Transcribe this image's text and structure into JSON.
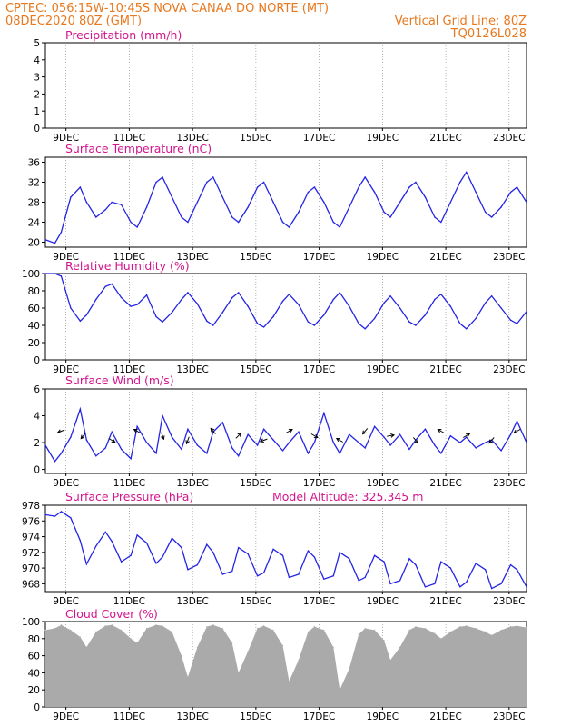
{
  "header": {
    "line1_left": "CPTEC:   056:15W-10:45S   NOVA CANAA DO NORTE (MT)",
    "line2_left": "08DEC2020 80Z (GMT)",
    "line2_right": "Vertical Grid Line: 80Z",
    "line3_right": "TQ0126L028",
    "model_altitude": "Model Altitude: 325.345 m"
  },
  "colors": {
    "header": "#e8781e",
    "panel_title": "#d4148c",
    "series": "#2424e6",
    "cloud": "#aaaaaa",
    "grid": "#808080"
  },
  "x_ticks": [
    "9DEC",
    "11DEC",
    "13DEC",
    "15DEC",
    "17DEC",
    "19DEC",
    "21DEC",
    "23DEC"
  ],
  "chart_data": [
    {
      "type": "bar",
      "title": "Precipitation (mm/h)",
      "ylim": [
        0,
        5
      ],
      "yticks": [
        "0",
        "1",
        "2",
        "3",
        "4",
        "5"
      ],
      "x_unit": "days since 08DEC2020 08Z",
      "x": [
        0.0,
        0.1,
        0.2,
        0.3,
        0.4,
        0.5,
        0.6,
        0.7,
        0.8,
        0.9,
        1.0,
        1.1,
        1.2,
        1.3,
        1.4,
        1.5,
        1.6,
        1.7,
        1.8,
        1.9,
        2.0,
        2.1,
        2.2,
        2.3,
        2.4,
        2.5,
        2.6,
        2.7,
        2.8,
        2.9,
        3.0,
        3.1,
        3.2,
        3.3,
        3.4,
        3.5,
        3.6,
        3.7,
        3.8,
        3.9,
        4.0,
        4.1,
        4.2,
        4.3,
        4.4,
        4.5,
        4.6,
        4.7,
        4.8,
        4.9,
        5.0,
        5.1,
        5.2,
        5.3,
        5.4,
        5.5,
        5.6,
        5.7,
        5.8,
        5.9,
        6.0,
        6.1,
        6.2,
        6.3,
        6.4,
        6.5,
        6.6,
        6.7,
        6.8,
        6.9,
        7.0,
        7.1,
        7.2,
        7.3,
        7.4,
        7.5,
        7.6,
        7.7,
        7.8,
        7.9,
        8.0,
        8.1,
        8.2,
        8.3,
        8.4,
        8.5,
        8.6,
        8.7,
        8.8,
        8.9,
        9.0,
        9.1,
        9.2,
        9.3,
        9.4,
        9.5,
        9.6,
        9.7,
        9.8,
        9.9,
        10.0,
        10.1,
        10.2,
        10.3,
        10.4,
        10.5,
        10.6,
        10.7,
        10.8,
        10.9,
        11.0,
        11.1,
        11.2,
        11.3,
        11.4,
        11.5,
        11.6,
        11.7,
        11.8,
        11.9,
        12.0,
        12.1,
        12.2,
        12.3,
        12.4,
        12.5,
        12.6,
        12.7,
        12.8,
        12.9,
        13.0,
        13.1,
        13.2,
        13.3,
        13.4,
        13.5,
        13.6,
        13.7,
        13.8,
        13.9,
        14.0,
        14.1,
        14.2,
        14.3,
        14.4,
        14.5,
        14.6,
        14.7,
        14.8,
        14.9,
        15.0,
        15.1,
        15.2,
        15.3,
        15.4,
        15.5,
        15.6,
        15.7,
        15.8,
        15.9,
        16.0,
        16.1,
        16.2,
        16.3,
        16.4,
        16.5,
        16.6,
        16.7,
        16.8,
        16.9,
        17.0,
        17.1,
        17.2,
        17.3,
        17.4,
        17.5,
        17.6,
        17.7,
        17.8,
        17.9,
        18.0,
        18.1,
        18.2,
        18.3,
        18.4,
        18.5,
        18.6,
        18.7,
        18.8,
        18.9,
        19.0,
        19.1,
        19.2,
        19.3,
        19.4,
        19.5,
        19.6,
        19.7,
        19.8,
        19.9,
        20.0,
        20.1,
        20.2,
        20.3,
        20.4,
        20.5,
        20.6,
        20.7,
        20.8,
        20.9,
        21.0,
        21.1,
        21.2,
        21.3,
        21.4,
        21.5,
        21.6,
        21.7,
        21.8,
        21.9,
        22.0,
        22.1,
        22.2,
        22.3,
        22.4,
        22.5,
        22.6,
        22.7,
        22.8,
        22.9
      ],
      "values": [
        0,
        0,
        0,
        0,
        0,
        0,
        0,
        0,
        0,
        0,
        0,
        0,
        0,
        0,
        0,
        0,
        0,
        0,
        0,
        0,
        0,
        0,
        0,
        0,
        0,
        0,
        0,
        0,
        0,
        0,
        0,
        0,
        0,
        0,
        0,
        0,
        0,
        0,
        0,
        0,
        0,
        0,
        0,
        0,
        0,
        0,
        0,
        0,
        0,
        0,
        0,
        0,
        0,
        0,
        0,
        0,
        0,
        0,
        0,
        0,
        0,
        0,
        0,
        0,
        0,
        0,
        0,
        0,
        0,
        0,
        0,
        0,
        0,
        0,
        0,
        0,
        0,
        0,
        0,
        0,
        0,
        0,
        0,
        0,
        0,
        0,
        0,
        0,
        0,
        0,
        0,
        0,
        0,
        0,
        0,
        0,
        0,
        0,
        0,
        0,
        0,
        0,
        0,
        0,
        0,
        0,
        0,
        0,
        0,
        0,
        0,
        0,
        0,
        0,
        0,
        0,
        0,
        0,
        0,
        0,
        0,
        0,
        0,
        0,
        0,
        0,
        0,
        0,
        0,
        0,
        0,
        0,
        0,
        0,
        0,
        0,
        0,
        0,
        0,
        0,
        0,
        0,
        0,
        0,
        0,
        0,
        0,
        0,
        0,
        0,
        0,
        0,
        0,
        0,
        0,
        0,
        0,
        0,
        0,
        0,
        0,
        0,
        0,
        0,
        0,
        0,
        0,
        0,
        0,
        0,
        0,
        0,
        0,
        0,
        0,
        0,
        0,
        0,
        0,
        0,
        0,
        0,
        0,
        0,
        0,
        0,
        0,
        0,
        0,
        0,
        0,
        0,
        0,
        0,
        0,
        0,
        0,
        0,
        0,
        0,
        0,
        0,
        0,
        0,
        0,
        0,
        0,
        0,
        0,
        0,
        0,
        0,
        0,
        0,
        0,
        0,
        0,
        0,
        0,
        0,
        0,
        0,
        0,
        0,
        0,
        0,
        0,
        0,
        0,
        0
      ]
    },
    {
      "type": "line",
      "title": "Surface Temperature (nC)",
      "ylim": [
        19,
        37
      ],
      "yticks": [
        "20",
        "24",
        "28",
        "32",
        "36"
      ],
      "x_unit": "days since 08DEC2020 08Z",
      "x": [
        0.0,
        0.3,
        0.5,
        0.8,
        1.1,
        1.3,
        1.6,
        1.9,
        2.1,
        2.4,
        2.7,
        2.9,
        3.2,
        3.5,
        3.7,
        4.0,
        4.3,
        4.5,
        4.8,
        5.1,
        5.3,
        5.6,
        5.9,
        6.1,
        6.4,
        6.7,
        6.9,
        7.2,
        7.5,
        7.7,
        8.0,
        8.3,
        8.5,
        8.8,
        9.1,
        9.3,
        9.6,
        9.9,
        10.1,
        10.4,
        10.7,
        10.9,
        11.2,
        11.5,
        11.7,
        12.0,
        12.3,
        12.5,
        12.8,
        13.1,
        13.3,
        13.6,
        13.9,
        14.1,
        14.4,
        14.7,
        14.9,
        15.2
      ],
      "values": [
        20.5,
        19.8,
        22,
        29,
        31,
        28,
        25,
        26.5,
        28,
        27.5,
        24,
        23,
        27,
        32,
        33,
        29,
        25,
        24,
        28,
        32,
        33,
        29,
        25,
        24,
        27,
        31,
        32,
        28,
        24,
        23,
        26,
        30,
        31,
        28,
        24,
        23,
        27,
        31,
        33,
        30,
        26,
        25,
        28,
        31,
        32,
        29,
        25,
        24,
        28,
        32,
        34,
        30,
        26,
        25,
        27,
        30,
        31,
        28
      ]
    },
    {
      "type": "line",
      "title": "Relative Humidity (%)",
      "ylim": [
        0,
        100
      ],
      "yticks": [
        "0",
        "20",
        "40",
        "60",
        "80",
        "100"
      ],
      "x_unit": "days since 08DEC2020 08Z",
      "x": [
        0.0,
        0.3,
        0.5,
        0.8,
        1.1,
        1.3,
        1.6,
        1.9,
        2.1,
        2.4,
        2.7,
        2.9,
        3.2,
        3.5,
        3.7,
        4.0,
        4.3,
        4.5,
        4.8,
        5.1,
        5.3,
        5.6,
        5.9,
        6.1,
        6.4,
        6.7,
        6.9,
        7.2,
        7.5,
        7.7,
        8.0,
        8.3,
        8.5,
        8.8,
        9.1,
        9.3,
        9.6,
        9.9,
        10.1,
        10.4,
        10.7,
        10.9,
        11.2,
        11.5,
        11.7,
        12.0,
        12.3,
        12.5,
        12.8,
        13.1,
        13.3,
        13.6,
        13.9,
        14.1,
        14.4,
        14.7,
        14.9,
        15.2
      ],
      "values": [
        100,
        100,
        97,
        60,
        45,
        52,
        70,
        85,
        88,
        72,
        62,
        64,
        75,
        50,
        44,
        55,
        70,
        78,
        65,
        45,
        40,
        55,
        72,
        78,
        62,
        42,
        38,
        50,
        68,
        76,
        64,
        44,
        40,
        52,
        70,
        78,
        62,
        42,
        36,
        48,
        66,
        74,
        60,
        44,
        40,
        52,
        70,
        76,
        62,
        42,
        36,
        48,
        66,
        74,
        60,
        46,
        42,
        56
      ]
    },
    {
      "type": "line",
      "title": "Surface Wind (m/s)",
      "ylim": [
        -0.3,
        6
      ],
      "yticks": [
        "0",
        "2",
        "4",
        "6"
      ],
      "x_unit": "days since 08DEC2020 08Z",
      "x": [
        0.0,
        0.3,
        0.5,
        0.8,
        1.1,
        1.3,
        1.6,
        1.9,
        2.1,
        2.4,
        2.7,
        2.9,
        3.2,
        3.5,
        3.7,
        4.0,
        4.3,
        4.5,
        4.8,
        5.1,
        5.3,
        5.6,
        5.9,
        6.1,
        6.4,
        6.7,
        6.9,
        7.2,
        7.5,
        7.7,
        8.0,
        8.3,
        8.5,
        8.8,
        9.1,
        9.3,
        9.6,
        9.9,
        10.1,
        10.4,
        10.7,
        10.9,
        11.2,
        11.5,
        11.7,
        12.0,
        12.3,
        12.5,
        12.8,
        13.1,
        13.3,
        13.6,
        13.9,
        14.1,
        14.4,
        14.7,
        14.9,
        15.2
      ],
      "values": [
        1.8,
        0.6,
        1.2,
        2.4,
        4.5,
        2.2,
        1.0,
        1.6,
        2.8,
        1.5,
        0.8,
        3.2,
        2.0,
        1.2,
        4.0,
        2.4,
        1.5,
        3.0,
        1.8,
        1.2,
        2.8,
        3.5,
        1.6,
        1.0,
        2.6,
        1.8,
        3.0,
        2.2,
        1.4,
        2.0,
        2.8,
        1.2,
        2.0,
        4.2,
        2.0,
        1.2,
        2.6,
        2.0,
        1.6,
        3.2,
        2.4,
        1.8,
        2.6,
        1.5,
        2.2,
        3.0,
        1.8,
        1.2,
        2.5,
        2.0,
        2.4,
        1.6,
        2.0,
        2.2,
        1.4,
        2.6,
        3.6,
        2.0
      ]
    },
    {
      "type": "line",
      "title": "Surface Pressure (hPa)",
      "ylim": [
        967,
        978
      ],
      "yticks": [
        "968",
        "970",
        "972",
        "974",
        "976",
        "978"
      ],
      "x_unit": "days since 08DEC2020 08Z",
      "x": [
        0.0,
        0.3,
        0.5,
        0.8,
        1.1,
        1.3,
        1.6,
        1.9,
        2.1,
        2.4,
        2.7,
        2.9,
        3.2,
        3.5,
        3.7,
        4.0,
        4.3,
        4.5,
        4.8,
        5.1,
        5.3,
        5.6,
        5.9,
        6.1,
        6.4,
        6.7,
        6.9,
        7.2,
        7.5,
        7.7,
        8.0,
        8.3,
        8.5,
        8.8,
        9.1,
        9.3,
        9.6,
        9.9,
        10.1,
        10.4,
        10.7,
        10.9,
        11.2,
        11.5,
        11.7,
        12.0,
        12.3,
        12.5,
        12.8,
        13.1,
        13.3,
        13.6,
        13.9,
        14.1,
        14.4,
        14.7,
        14.9,
        15.2
      ],
      "values": [
        976.8,
        976.6,
        977.2,
        976.4,
        973.5,
        970.5,
        972.8,
        974.6,
        973.4,
        970.8,
        971.6,
        974.2,
        973.2,
        970.6,
        971.4,
        973.8,
        972.6,
        969.8,
        970.4,
        973.0,
        972.0,
        969.2,
        969.6,
        972.6,
        971.8,
        969.0,
        969.4,
        972.4,
        971.6,
        968.8,
        969.2,
        972.2,
        971.4,
        968.6,
        969.0,
        972.0,
        971.2,
        968.4,
        968.8,
        971.6,
        970.8,
        968.0,
        968.4,
        971.2,
        970.4,
        967.6,
        968.0,
        970.8,
        970.0,
        967.6,
        968.2,
        970.6,
        969.8,
        967.4,
        968.0,
        970.4,
        969.8,
        967.6
      ]
    },
    {
      "type": "area",
      "title": "Cloud Cover (%)",
      "ylim": [
        0,
        100
      ],
      "yticks": [
        "0",
        "20",
        "40",
        "60",
        "80",
        "100"
      ],
      "x_unit": "days since 08DEC2020 08Z",
      "x": [
        0.0,
        0.3,
        0.5,
        0.8,
        1.1,
        1.3,
        1.6,
        1.9,
        2.1,
        2.4,
        2.7,
        2.9,
        3.2,
        3.5,
        3.7,
        4.0,
        4.3,
        4.5,
        4.8,
        5.1,
        5.3,
        5.6,
        5.9,
        6.1,
        6.4,
        6.7,
        6.9,
        7.2,
        7.5,
        7.7,
        8.0,
        8.3,
        8.5,
        8.8,
        9.1,
        9.3,
        9.6,
        9.9,
        10.1,
        10.4,
        10.7,
        10.9,
        11.2,
        11.5,
        11.7,
        12.0,
        12.3,
        12.5,
        12.8,
        13.1,
        13.3,
        13.6,
        13.9,
        14.1,
        14.4,
        14.7,
        14.9,
        15.2
      ],
      "values": [
        90,
        92,
        96,
        90,
        82,
        70,
        88,
        95,
        96,
        90,
        80,
        75,
        92,
        96,
        95,
        88,
        60,
        35,
        70,
        94,
        96,
        92,
        75,
        40,
        65,
        92,
        95,
        90,
        72,
        30,
        55,
        88,
        94,
        90,
        70,
        20,
        45,
        85,
        92,
        90,
        78,
        55,
        70,
        90,
        94,
        92,
        86,
        80,
        88,
        94,
        95,
        92,
        88,
        84,
        90,
        94,
        95,
        93
      ]
    }
  ],
  "wind_arrows": {
    "note": "direction in degrees (meteorological, arrow points toward where wind blows)",
    "x": [
      0.5,
      1.2,
      2.1,
      2.9,
      3.7,
      4.5,
      5.3,
      6.1,
      6.9,
      7.7,
      8.5,
      9.3,
      10.1,
      10.9,
      11.7,
      12.5,
      13.3,
      14.1,
      14.9
    ],
    "dir": [
      250,
      220,
      120,
      300,
      160,
      200,
      320,
      45,
      250,
      60,
      120,
      300,
      220,
      80,
      140,
      300,
      60,
      220,
      240
    ]
  }
}
